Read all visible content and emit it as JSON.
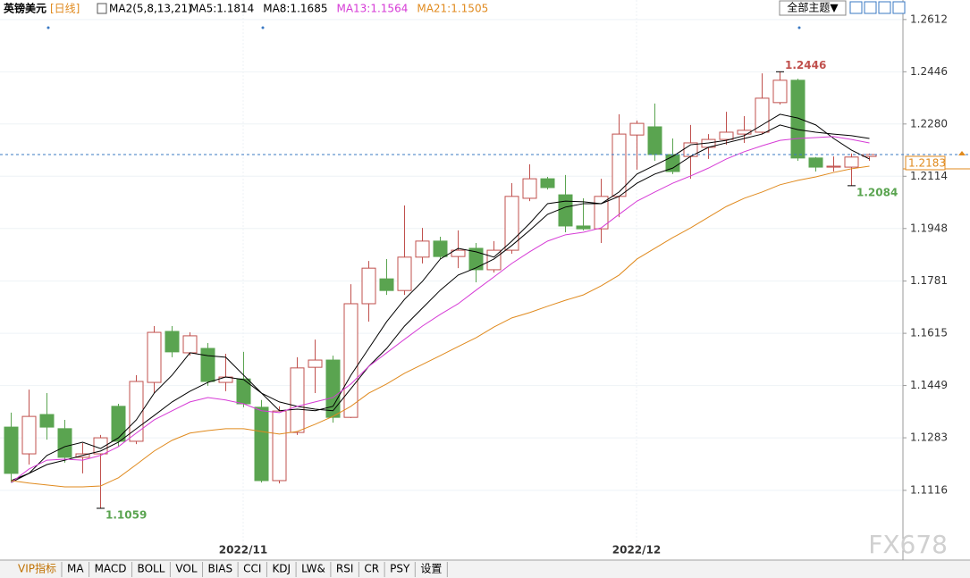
{
  "chart_data": {
    "type": "candlestick",
    "title": "英镑美元",
    "period": "[日线]",
    "indicator": "MA2(5,8,13,21)",
    "categories": [
      null,
      null,
      null,
      null,
      null,
      null,
      null,
      null,
      null,
      null,
      null,
      null,
      null,
      "2022/11",
      null,
      null,
      null,
      null,
      null,
      null,
      null,
      null,
      null,
      null,
      null,
      null,
      null,
      null,
      null,
      null,
      null,
      null,
      null,
      null,
      null,
      "2022/12",
      null,
      null,
      null,
      null,
      null,
      null,
      null,
      null,
      null,
      null,
      null,
      null,
      null
    ],
    "open": [
      1.1317,
      1.1232,
      1.1357,
      1.1312,
      1.1221,
      1.1232,
      1.1383,
      1.1272,
      1.1459,
      1.1621,
      1.1553,
      1.1567,
      1.1459,
      1.147,
      1.138,
      1.1147,
      1.13,
      1.1507,
      1.153,
      1.1348,
      1.1709,
      1.1788,
      1.1751,
      1.1857,
      1.1908,
      1.1859,
      1.1885,
      1.1817,
      1.1879,
      1.2044,
      1.2106,
      1.2055,
      1.1956,
      1.1947,
      1.205,
      1.2245,
      1.2271,
      1.2183,
      1.2177,
      1.2206,
      1.2231,
      1.2248,
      1.2254,
      1.2348,
      1.2419,
      1.2172,
      1.2143,
      1.2143,
      1.2177
    ],
    "high": [
      1.1363,
      1.1436,
      1.1425,
      1.134,
      1.1266,
      1.1292,
      1.1391,
      1.1482,
      1.1638,
      1.1638,
      1.1618,
      1.1584,
      1.155,
      1.1556,
      1.1403,
      1.1383,
      1.1539,
      1.1595,
      1.1544,
      1.1771,
      1.1845,
      1.1851,
      1.2021,
      1.195,
      1.1922,
      1.1942,
      1.1902,
      1.1908,
      1.2092,
      1.2152,
      1.2112,
      1.2118,
      1.2044,
      1.2106,
      1.2311,
      1.2291,
      1.2345,
      1.2234,
      1.2277,
      1.2248,
      1.2319,
      1.2305,
      1.2441,
      1.2446,
      1.2424,
      1.2175,
      1.2177,
      1.2186,
      1.2186
    ],
    "low": [
      1.1141,
      1.1198,
      1.1277,
      1.1204,
      1.117,
      1.1059,
      1.1255,
      1.1263,
      1.1425,
      1.1539,
      1.1544,
      1.1448,
      1.1431,
      1.138,
      1.1141,
      1.1138,
      1.1292,
      1.1425,
      1.1331,
      1.1346,
      1.1652,
      1.1737,
      1.1737,
      1.1837,
      1.1851,
      1.1822,
      1.1777,
      1.1808,
      1.1868,
      1.2035,
      1.2072,
      1.1936,
      1.1942,
      1.1902,
      1.1984,
      1.2135,
      1.2163,
      1.2121,
      1.2106,
      1.2169,
      1.2214,
      1.222,
      1.2248,
      1.2342,
      1.2163,
      1.2129,
      1.2129,
      1.2084,
      1.2163
    ],
    "close": [
      1.117,
      1.1351,
      1.1317,
      1.1221,
      1.1232,
      1.1283,
      1.1272,
      1.1462,
      1.1618,
      1.1556,
      1.1607,
      1.1462,
      1.1476,
      1.1391,
      1.1147,
      1.1368,
      1.1505,
      1.153,
      1.1348,
      1.1709,
      1.1822,
      1.1751,
      1.1857,
      1.1908,
      1.1859,
      1.1879,
      1.1817,
      1.1879,
      1.205,
      1.2106,
      1.2078,
      1.1956,
      1.1947,
      1.205,
      1.2248,
      1.2282,
      1.2183,
      1.2129,
      1.222,
      1.2231,
      1.2254,
      1.226,
      1.2362,
      1.2419,
      1.2172,
      1.2143,
      1.2146,
      1.2175,
      1.2183
    ],
    "up_color": "#c0504d",
    "down_color": "#5aa450",
    "series": [
      {
        "name": "MA5:1.1814",
        "color": "#000000",
        "values": [
          1.1141,
          1.117,
          1.1227,
          1.1255,
          1.1269,
          1.1249,
          1.1283,
          1.134,
          1.1425,
          1.1482,
          1.1553,
          1.1544,
          1.1539,
          1.1482,
          1.1425,
          1.1369,
          1.1374,
          1.1369,
          1.1383,
          1.1482,
          1.1567,
          1.1652,
          1.1723,
          1.178,
          1.1851,
          1.1885,
          1.1874,
          1.1857,
          1.1908,
          1.1964,
          1.2027,
          1.2035,
          1.2033,
          1.2027,
          1.2064,
          1.2121,
          1.2149,
          1.2177,
          1.2214,
          1.222,
          1.2228,
          1.2243,
          1.2277,
          1.2311,
          1.2299,
          1.2277,
          1.2234,
          1.2197,
          1.2169
        ]
      },
      {
        "name": "MA8:1.1685",
        "color": "#000000",
        "values": [
          1.1147,
          1.117,
          1.1198,
          1.1212,
          1.1227,
          1.1241,
          1.1269,
          1.1312,
          1.1354,
          1.1397,
          1.1431,
          1.1459,
          1.1476,
          1.1468,
          1.1425,
          1.1397,
          1.1383,
          1.1374,
          1.1369,
          1.1439,
          1.151,
          1.1567,
          1.1638,
          1.1695,
          1.1752,
          1.18,
          1.1823,
          1.1851,
          1.1894,
          1.1942,
          1.1993,
          1.2016,
          1.2027,
          1.2027,
          1.205,
          1.2092,
          1.2121,
          1.214,
          1.2177,
          1.2206,
          1.222,
          1.2234,
          1.2248,
          1.2277,
          1.2262,
          1.2254,
          1.2248,
          1.2243,
          1.2234
        ]
      },
      {
        "name": "MA13:1.1564",
        "color": "#d63bd6",
        "values": [
          1.1141,
          1.1184,
          1.1212,
          1.1215,
          1.1212,
          1.1227,
          1.1255,
          1.1298,
          1.134,
          1.1369,
          1.1397,
          1.1411,
          1.1403,
          1.1391,
          1.1369,
          1.1363,
          1.1383,
          1.1397,
          1.1411,
          1.1454,
          1.151,
          1.1553,
          1.1596,
          1.1638,
          1.1675,
          1.1709,
          1.1752,
          1.1794,
          1.1837,
          1.1874,
          1.1908,
          1.1928,
          1.1936,
          1.195,
          1.1993,
          1.2035,
          1.2064,
          1.2092,
          1.2115,
          1.214,
          1.2169,
          1.2192,
          1.2211,
          1.2228,
          1.2234,
          1.2237,
          1.224,
          1.2231,
          1.222
        ]
      },
      {
        "name": "MA21:1.1505",
        "color": "#e08a1e",
        "values": [
          1.1147,
          1.1139,
          1.1133,
          1.1127,
          1.1127,
          1.113,
          1.1156,
          1.1198,
          1.1241,
          1.1275,
          1.1298,
          1.1306,
          1.1312,
          1.1312,
          1.1303,
          1.1295,
          1.1303,
          1.1326,
          1.1351,
          1.1383,
          1.1425,
          1.1454,
          1.1488,
          1.1516,
          1.1544,
          1.1573,
          1.1601,
          1.1635,
          1.1664,
          1.1681,
          1.1701,
          1.172,
          1.1737,
          1.1766,
          1.18,
          1.1851,
          1.1885,
          1.1919,
          1.195,
          1.1984,
          1.2018,
          1.2044,
          1.2064,
          1.2087,
          1.2101,
          1.2112,
          1.2126,
          1.2138,
          1.2146
        ]
      }
    ],
    "ylim": [
      1.09,
      1.2674
    ],
    "yticks": [
      1.2612,
      1.2446,
      {
        "value": 1.228,
        "label": "1.2280"
      },
      1.2114,
      1.1948,
      1.1781,
      1.1615,
      1.1449,
      1.1283,
      1.1116
    ],
    "grid": true,
    "theme_button": "全部主题▼",
    "tabs": [
      "VIP指标",
      "MA",
      "MACD",
      "BOLL",
      "VOL",
      "BIAS",
      "CCI",
      "KDJ",
      "LW&",
      "RSI",
      "CR",
      "PSY",
      "设置"
    ],
    "watermark": "FX678"
  }
}
